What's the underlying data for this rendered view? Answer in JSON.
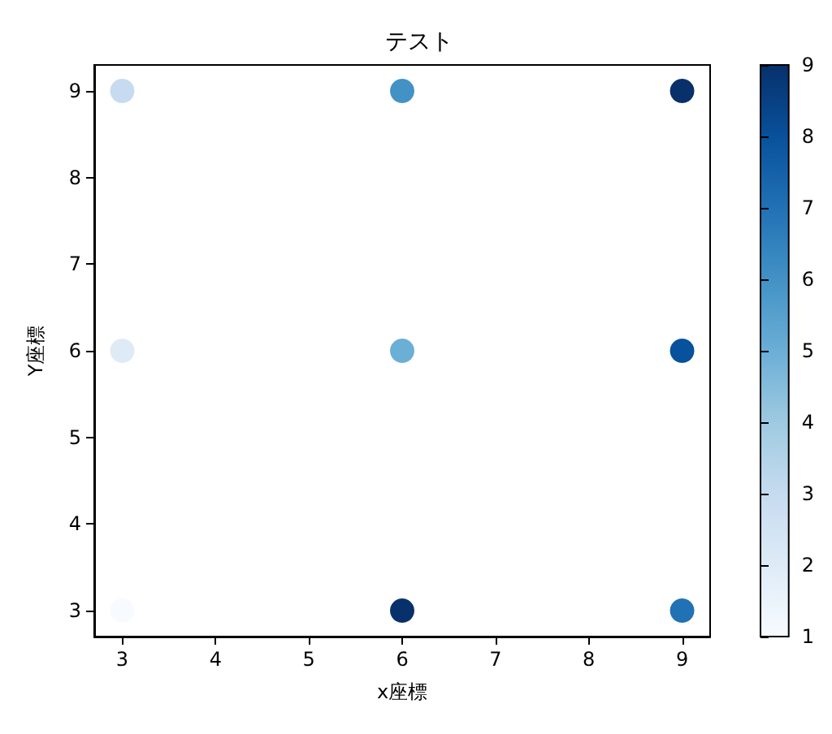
{
  "chart_data": {
    "type": "scatter",
    "title": "テスト",
    "xlabel": "x座標",
    "ylabel": "Y座標",
    "x": [
      3,
      3,
      3,
      6,
      6,
      6,
      9,
      9,
      9
    ],
    "values": [
      3,
      6,
      9,
      3,
      6,
      9,
      3,
      6,
      9
    ],
    "cvalues": [
      1,
      2,
      3,
      9,
      5,
      6,
      7,
      8,
      9
    ],
    "xlim": [
      2.7,
      9.3
    ],
    "ylim": [
      2.7,
      9.3
    ],
    "xticks": [
      3,
      4,
      5,
      6,
      7,
      8,
      9
    ],
    "yticks": [
      3,
      4,
      5,
      6,
      7,
      8,
      9
    ],
    "clim": [
      1,
      9
    ],
    "cticks": [
      1,
      2,
      3,
      4,
      5,
      6,
      7,
      8,
      9
    ],
    "marker": "circle",
    "grid": false
  }
}
